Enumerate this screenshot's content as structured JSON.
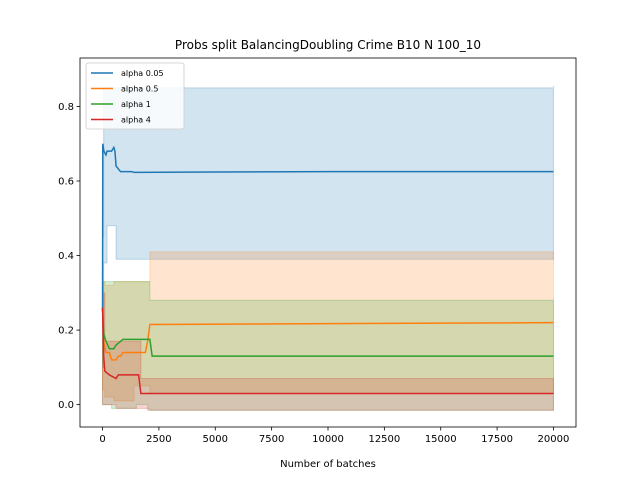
{
  "chart_data": {
    "type": "line",
    "title": "Probs split BalancingDoubling Crime B10 N 100_10",
    "xlabel": "Number of batches",
    "ylabel": "",
    "xlim": [
      -1000,
      21000
    ],
    "ylim": [
      -0.06,
      0.93
    ],
    "xticks": [
      0,
      2500,
      5000,
      7500,
      10000,
      12500,
      15000,
      17500,
      20000
    ],
    "yticks": [
      0.0,
      0.2,
      0.4,
      0.6,
      0.8
    ],
    "ytick_labels": [
      "0.0",
      "0.2",
      "0.4",
      "0.6",
      "0.8"
    ],
    "grid": false,
    "legend_position": "top-left",
    "series": [
      {
        "name": "alpha 0.05",
        "color": "#1f77b4",
        "mean": [
          [
            0,
            0.25
          ],
          [
            10,
            0.7
          ],
          [
            60,
            0.68
          ],
          [
            150,
            0.67
          ],
          [
            200,
            0.68
          ],
          [
            400,
            0.68
          ],
          [
            500,
            0.69
          ],
          [
            550,
            0.68
          ],
          [
            600,
            0.64
          ],
          [
            800,
            0.625
          ],
          [
            1300,
            0.625
          ],
          [
            1400,
            0.623
          ],
          [
            5000,
            0.624
          ],
          [
            10000,
            0.625
          ],
          [
            15000,
            0.625
          ],
          [
            20000,
            0.625
          ]
        ],
        "band_upper": [
          [
            0,
            0.45
          ],
          [
            50,
            0.85
          ],
          [
            20000,
            0.855
          ]
        ],
        "band_lower": [
          [
            0,
            0.1
          ],
          [
            50,
            0.38
          ],
          [
            200,
            0.48
          ],
          [
            500,
            0.48
          ],
          [
            600,
            0.39
          ],
          [
            1400,
            0.39
          ],
          [
            20000,
            0.39
          ]
        ]
      },
      {
        "name": "alpha 0.5",
        "color": "#ff7f0e",
        "mean": [
          [
            0,
            0.26
          ],
          [
            50,
            0.17
          ],
          [
            150,
            0.14
          ],
          [
            300,
            0.14
          ],
          [
            400,
            0.12
          ],
          [
            600,
            0.12
          ],
          [
            700,
            0.13
          ],
          [
            800,
            0.13
          ],
          [
            900,
            0.14
          ],
          [
            1400,
            0.14
          ],
          [
            1900,
            0.14
          ],
          [
            2000,
            0.17
          ],
          [
            2100,
            0.215
          ],
          [
            20000,
            0.22
          ]
        ],
        "band_upper": [
          [
            0,
            0.33
          ],
          [
            100,
            0.32
          ],
          [
            500,
            0.33
          ],
          [
            1400,
            0.33
          ],
          [
            2000,
            0.33
          ],
          [
            2100,
            0.41
          ],
          [
            20000,
            0.41
          ]
        ],
        "band_lower": [
          [
            0,
            0.04
          ],
          [
            100,
            0.02
          ],
          [
            500,
            0.01
          ],
          [
            1400,
            0.05
          ],
          [
            2000,
            0.05
          ],
          [
            2100,
            0.03
          ],
          [
            20000,
            0.03
          ]
        ]
      },
      {
        "name": "alpha 1",
        "color": "#2ca02c",
        "mean": [
          [
            0,
            0.26
          ],
          [
            50,
            0.19
          ],
          [
            150,
            0.17
          ],
          [
            300,
            0.15
          ],
          [
            500,
            0.15
          ],
          [
            600,
            0.16
          ],
          [
            800,
            0.17
          ],
          [
            900,
            0.175
          ],
          [
            2100,
            0.175
          ],
          [
            2200,
            0.13
          ],
          [
            20000,
            0.13
          ]
        ],
        "band_upper": [
          [
            0,
            0.33
          ],
          [
            100,
            0.33
          ],
          [
            500,
            0.33
          ],
          [
            1500,
            0.33
          ],
          [
            2000,
            0.33
          ],
          [
            2100,
            0.28
          ],
          [
            20000,
            0.28
          ]
        ],
        "band_lower": [
          [
            0,
            0.0
          ],
          [
            100,
            0.0
          ],
          [
            400,
            -0.01
          ],
          [
            1500,
            0.0
          ],
          [
            2000,
            -0.01
          ],
          [
            2100,
            -0.015
          ],
          [
            20000,
            -0.015
          ]
        ]
      },
      {
        "name": "alpha 4",
        "color": "#d62728",
        "mean": [
          [
            0,
            0.26
          ],
          [
            50,
            0.13
          ],
          [
            100,
            0.09
          ],
          [
            300,
            0.08
          ],
          [
            600,
            0.07
          ],
          [
            700,
            0.08
          ],
          [
            1000,
            0.08
          ],
          [
            1600,
            0.08
          ],
          [
            1700,
            0.03
          ],
          [
            5000,
            0.03
          ],
          [
            20000,
            0.03
          ]
        ],
        "band_upper": [
          [
            0,
            0.3
          ],
          [
            100,
            0.17
          ],
          [
            600,
            0.17
          ],
          [
            1600,
            0.17
          ],
          [
            1700,
            0.07
          ],
          [
            20000,
            0.065
          ]
        ],
        "band_lower": [
          [
            0,
            0.0
          ],
          [
            100,
            0.0
          ],
          [
            600,
            -0.01
          ],
          [
            1600,
            -0.01
          ],
          [
            1700,
            -0.01
          ],
          [
            2000,
            -0.015
          ],
          [
            20000,
            -0.015
          ]
        ]
      }
    ]
  }
}
